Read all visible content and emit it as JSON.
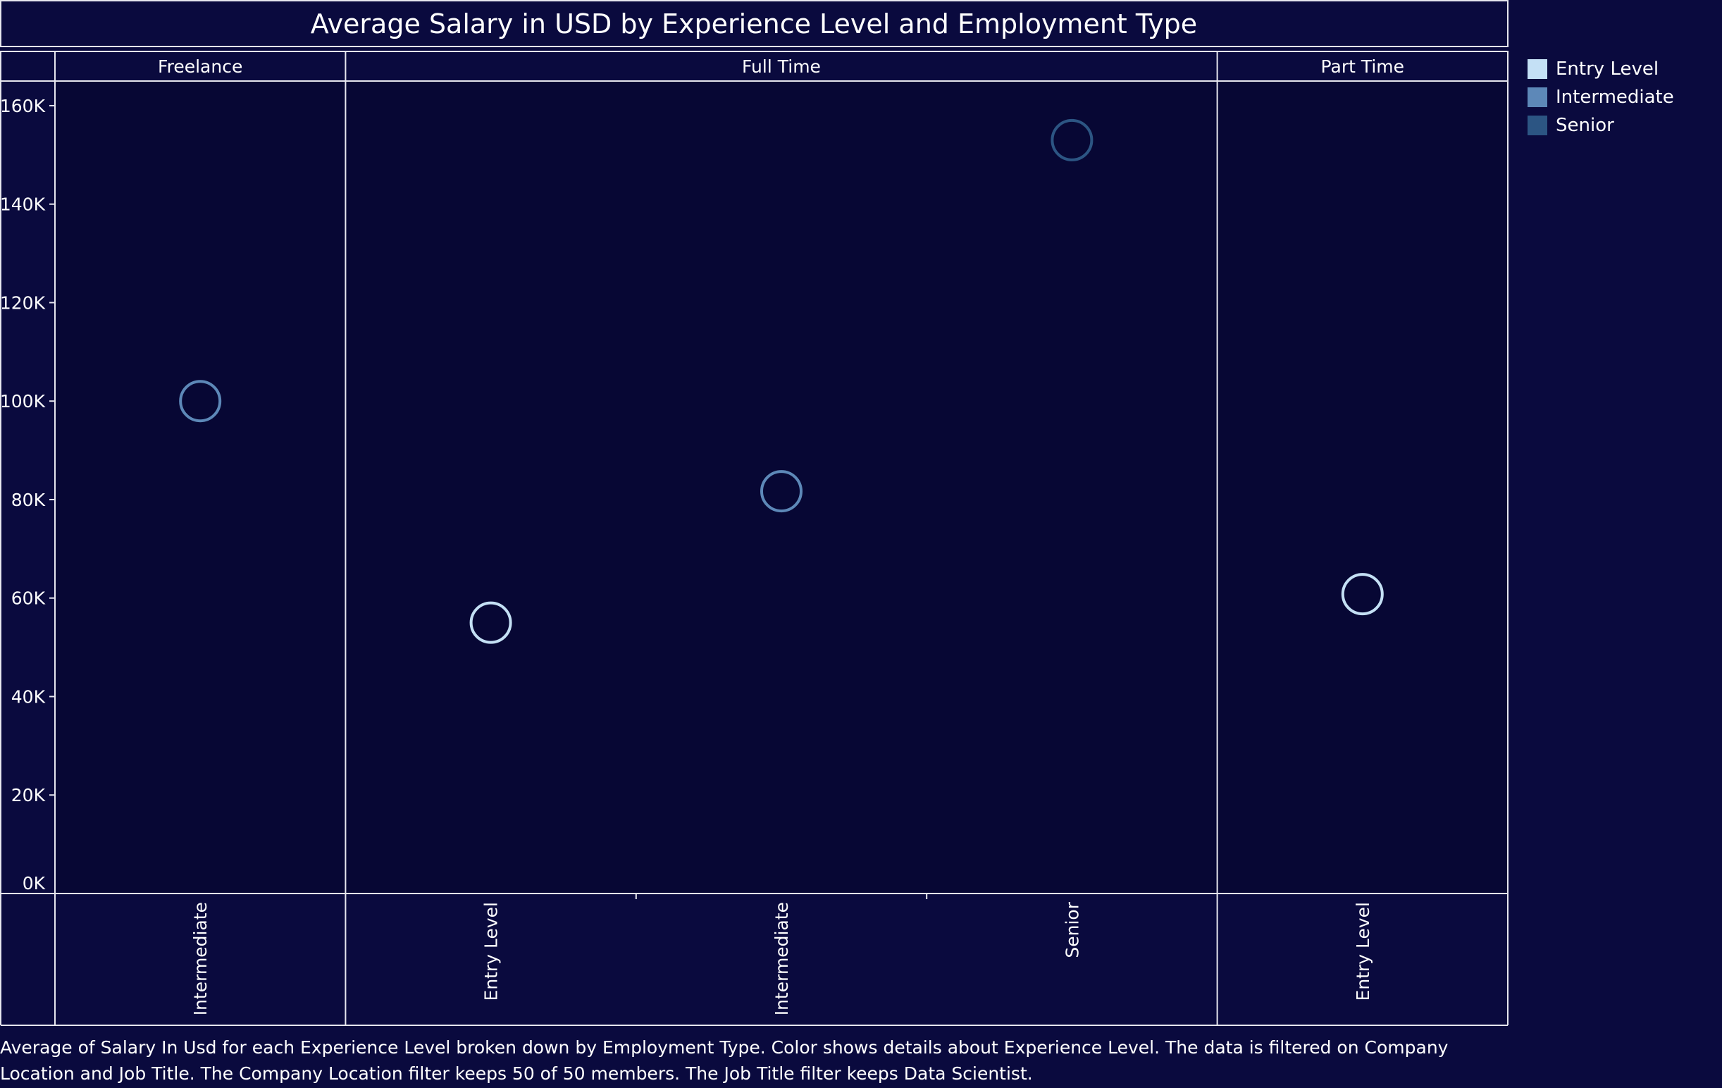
{
  "chart_data": {
    "type": "scatter",
    "title": "Average Salary in USD by Experience Level and Employment Type",
    "panels": [
      {
        "employment_type": "Freelance",
        "categories": [
          "Intermediate"
        ]
      },
      {
        "employment_type": "Full Time",
        "categories": [
          "Entry Level",
          "Intermediate",
          "Senior"
        ]
      },
      {
        "employment_type": "Part Time",
        "categories": [
          "Entry Level"
        ]
      }
    ],
    "points": [
      {
        "employment_type": "Freelance",
        "experience_level": "Intermediate",
        "value": 100000
      },
      {
        "employment_type": "Full Time",
        "experience_level": "Entry Level",
        "value": 55000
      },
      {
        "employment_type": "Full Time",
        "experience_level": "Intermediate",
        "value": 81700
      },
      {
        "employment_type": "Full Time",
        "experience_level": "Senior",
        "value": 153000
      },
      {
        "employment_type": "Part Time",
        "experience_level": "Entry Level",
        "value": 60800
      }
    ],
    "ylim": [
      0,
      165000
    ],
    "yticks": [
      0,
      20000,
      40000,
      60000,
      80000,
      100000,
      120000,
      140000,
      160000
    ],
    "ytick_labels": [
      "0K",
      "20K",
      "40K",
      "60K",
      "80K",
      "100K",
      "120K",
      "140K",
      "160K"
    ],
    "grid": false,
    "legend_position": "right",
    "legend": [
      {
        "label": "Entry Level",
        "color": "#c4e0f5"
      },
      {
        "label": "Intermediate",
        "color": "#5d88b8"
      },
      {
        "label": "Senior",
        "color": "#2c5583"
      }
    ]
  },
  "caption": "Average of Salary In Usd for each Experience Level broken down by Employment Type.  Color shows details about Experience Level. The data is filtered on Company Location and Job Title. The Company Location filter keeps 50 of 50 members. The Job Title filter keeps Data Scientist.",
  "colors": {
    "background": "#0a0a3e",
    "plot_background": "#070734",
    "frame": "#e6e6ee"
  }
}
